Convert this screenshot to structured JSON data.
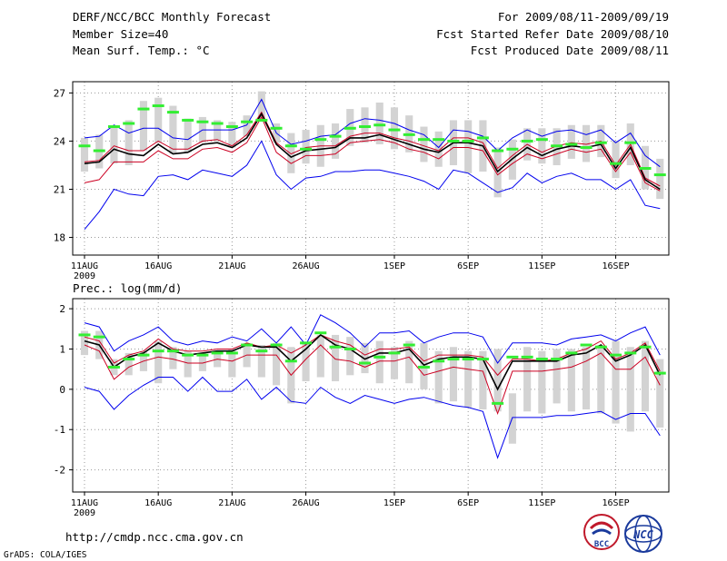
{
  "header": {
    "title": "DERF/NCC/BCC Monthly Forecast",
    "member_size": "Member Size=40",
    "variable": "Mean Surf. Temp.: °C",
    "period": "For 2009/08/11-2009/09/19",
    "refer_date": "Fcst Started Refer Date 2009/08/10",
    "produced_date": "Fcst Produced Date 2009/08/11"
  },
  "colors": {
    "box": "#d3d3d3",
    "clim": "#33ee33",
    "outer": "#0000ee",
    "inner": "#cc0022",
    "mean": "#000000",
    "grid": "#999999"
  },
  "footer": {
    "url": "http://cmdp.ncc.cma.gov.cn",
    "credit": "GrADS: COLA/IGES",
    "logo_bcc": "BCC",
    "logo_ncc": "NCC"
  },
  "chart_data": [
    {
      "type": "line",
      "title": "Mean Surf. Temp.: °C",
      "ylim": [
        16.9,
        27.7
      ],
      "yticks": [
        18,
        21,
        24,
        27
      ],
      "xlim": [
        -0.8,
        39.6
      ],
      "xticks": [
        {
          "day": 0,
          "label": "11AUG",
          "sub": "2009"
        },
        {
          "day": 5,
          "label": "16AUG",
          "sub": ""
        },
        {
          "day": 10,
          "label": "21AUG",
          "sub": ""
        },
        {
          "day": 15,
          "label": "26AUG",
          "sub": ""
        },
        {
          "day": 21,
          "label": "1SEP",
          "sub": ""
        },
        {
          "day": 26,
          "label": "6SEP",
          "sub": ""
        },
        {
          "day": 31,
          "label": "11SEP",
          "sub": ""
        },
        {
          "day": 36,
          "label": "16SEP",
          "sub": ""
        }
      ],
      "grid": true,
      "x": [
        0,
        1,
        2,
        3,
        4,
        5,
        6,
        7,
        8,
        9,
        10,
        11,
        12,
        13,
        14,
        15,
        16,
        17,
        18,
        19,
        20,
        21,
        22,
        23,
        24,
        25,
        26,
        27,
        28,
        29,
        30,
        31,
        32,
        33,
        34,
        35,
        36,
        37,
        38,
        39
      ],
      "box_low": [
        22.1,
        22.3,
        22.6,
        22.5,
        23.4,
        23.9,
        23.2,
        23.3,
        23.9,
        24.0,
        23.6,
        24.3,
        25.4,
        23.9,
        22.0,
        22.6,
        22.4,
        22.9,
        23.7,
        23.9,
        23.8,
        23.5,
        23.3,
        22.7,
        22.4,
        22.5,
        22.0,
        22.1,
        20.5,
        21.6,
        22.8,
        22.6,
        22.5,
        22.9,
        22.7,
        23.0,
        21.7,
        22.5,
        21.0,
        20.4
      ],
      "box_high": [
        24.2,
        24.4,
        24.9,
        25.3,
        26.5,
        26.7,
        26.2,
        25.4,
        25.5,
        25.3,
        25.2,
        25.6,
        27.1,
        25.1,
        24.5,
        24.7,
        25.0,
        25.1,
        26.0,
        26.1,
        26.4,
        26.1,
        25.6,
        24.9,
        24.6,
        25.3,
        25.3,
        25.3,
        23.6,
        24.1,
        24.8,
        24.8,
        24.8,
        25.0,
        25.0,
        25.0,
        24.0,
        25.1,
        23.7,
        22.9
      ],
      "clim": [
        23.7,
        23.4,
        24.9,
        25.1,
        26.0,
        26.2,
        25.8,
        25.3,
        25.2,
        25.1,
        24.9,
        25.2,
        25.3,
        24.8,
        23.7,
        23.5,
        24.1,
        24.3,
        24.8,
        24.9,
        25.0,
        24.7,
        24.4,
        24.1,
        24.1,
        24.0,
        24.0,
        24.2,
        23.4,
        23.5,
        24.0,
        24.1,
        23.7,
        23.8,
        23.6,
        23.9,
        22.6,
        23.9,
        22.3,
        21.9
      ],
      "series": [
        {
          "name": "max",
          "role": "outer",
          "values": [
            24.2,
            24.3,
            25.0,
            24.5,
            24.8,
            24.8,
            24.2,
            24.1,
            24.7,
            24.7,
            24.7,
            25.0,
            26.6,
            24.5,
            23.8,
            24.0,
            24.3,
            24.4,
            25.1,
            25.4,
            25.3,
            25.1,
            24.7,
            24.4,
            23.6,
            24.7,
            24.6,
            24.3,
            23.4,
            24.2,
            24.7,
            24.3,
            24.6,
            24.7,
            24.4,
            24.7,
            23.9,
            24.5,
            23.1,
            22.4
          ]
        },
        {
          "name": "upper",
          "role": "inner",
          "values": [
            22.7,
            22.8,
            23.7,
            23.4,
            23.4,
            24.0,
            23.5,
            23.5,
            24.0,
            24.1,
            23.7,
            24.4,
            25.8,
            23.9,
            23.2,
            23.6,
            23.7,
            23.7,
            24.3,
            24.5,
            24.5,
            24.2,
            24.0,
            23.7,
            23.4,
            24.2,
            24.2,
            23.9,
            22.3,
            23.1,
            23.8,
            23.3,
            23.7,
            23.9,
            23.8,
            24.0,
            22.5,
            23.8,
            21.7,
            21.2
          ]
        },
        {
          "name": "mean",
          "role": "mean",
          "values": [
            22.6,
            22.7,
            23.5,
            23.2,
            23.1,
            23.8,
            23.2,
            23.3,
            23.8,
            23.9,
            23.6,
            24.2,
            25.7,
            23.8,
            23.0,
            23.4,
            23.5,
            23.6,
            24.2,
            24.2,
            24.4,
            24.1,
            23.8,
            23.5,
            23.3,
            23.9,
            23.9,
            23.7,
            22.1,
            22.9,
            23.6,
            23.1,
            23.5,
            23.7,
            23.6,
            23.8,
            22.3,
            23.6,
            21.6,
            21.0
          ]
        },
        {
          "name": "lower",
          "role": "inner",
          "values": [
            21.4,
            21.6,
            22.7,
            22.7,
            22.7,
            23.4,
            22.9,
            22.9,
            23.5,
            23.6,
            23.3,
            23.9,
            25.5,
            23.3,
            22.6,
            23.1,
            23.1,
            23.2,
            23.9,
            24.0,
            24.1,
            23.9,
            23.5,
            23.3,
            22.9,
            23.6,
            23.6,
            23.4,
            21.9,
            22.6,
            23.2,
            22.9,
            23.2,
            23.5,
            23.3,
            23.5,
            22.1,
            23.3,
            21.4,
            20.9
          ]
        },
        {
          "name": "min",
          "role": "outer",
          "values": [
            18.5,
            19.6,
            21.0,
            20.7,
            20.6,
            21.8,
            21.9,
            21.6,
            22.2,
            22.0,
            21.8,
            22.5,
            24.0,
            21.9,
            21.0,
            21.7,
            21.8,
            22.1,
            22.1,
            22.2,
            22.2,
            22.0,
            21.8,
            21.5,
            21.0,
            22.2,
            22.0,
            21.4,
            20.8,
            21.1,
            22.0,
            21.4,
            21.8,
            22.0,
            21.6,
            21.6,
            21.0,
            21.6,
            20.0,
            19.8
          ]
        }
      ]
    },
    {
      "type": "line",
      "title": "Prec.: log(mm/d)",
      "ylim": [
        -2.55,
        2.25
      ],
      "yticks": [
        -2,
        -1,
        0,
        1,
        2
      ],
      "xlim": [
        -0.8,
        39.6
      ],
      "xticks": [
        {
          "day": 0,
          "label": "11AUG",
          "sub": "2009"
        },
        {
          "day": 5,
          "label": "16AUG",
          "sub": ""
        },
        {
          "day": 10,
          "label": "21AUG",
          "sub": ""
        },
        {
          "day": 15,
          "label": "26AUG",
          "sub": ""
        },
        {
          "day": 21,
          "label": "1SEP",
          "sub": ""
        },
        {
          "day": 26,
          "label": "6SEP",
          "sub": ""
        },
        {
          "day": 31,
          "label": "11SEP",
          "sub": ""
        },
        {
          "day": 36,
          "label": "16SEP",
          "sub": ""
        }
      ],
      "grid": true,
      "x": [
        0,
        1,
        2,
        3,
        4,
        5,
        6,
        7,
        8,
        9,
        10,
        11,
        12,
        13,
        14,
        15,
        16,
        17,
        18,
        19,
        20,
        21,
        22,
        23,
        24,
        25,
        26,
        27,
        28,
        29,
        30,
        31,
        32,
        33,
        34,
        35,
        36,
        37,
        38,
        39
      ],
      "box_low": [
        0.85,
        0.75,
        0.35,
        0.35,
        0.45,
        0.15,
        0.5,
        0.3,
        0.45,
        0.55,
        0.3,
        0.55,
        0.3,
        0.1,
        -0.35,
        0.2,
        0.3,
        0.2,
        0.35,
        0.4,
        0.15,
        0.25,
        0.15,
        0.0,
        -0.35,
        -0.3,
        -0.45,
        -0.5,
        -0.55,
        -1.35,
        -0.55,
        -0.6,
        -0.35,
        -0.55,
        -0.5,
        -0.6,
        -0.85,
        -1.05,
        -0.55,
        -0.95
      ],
      "box_high": [
        1.45,
        1.45,
        0.75,
        0.9,
        0.95,
        1.2,
        1.05,
        0.95,
        0.9,
        0.95,
        1.0,
        1.15,
        1.1,
        1.15,
        1.05,
        1.15,
        1.35,
        1.35,
        1.3,
        1.15,
        1.2,
        1.05,
        1.2,
        1.15,
        0.95,
        1.05,
        0.95,
        0.95,
        1.0,
        -0.1,
        1.05,
        0.95,
        1.0,
        1.0,
        1.05,
        1.1,
        1.2,
        1.05,
        1.2,
        0.75
      ],
      "clim": [
        1.35,
        1.3,
        0.55,
        0.75,
        0.85,
        0.95,
        0.95,
        0.85,
        0.85,
        0.9,
        0.9,
        1.1,
        0.95,
        1.1,
        0.7,
        1.15,
        1.4,
        1.05,
        1.0,
        0.65,
        0.8,
        0.9,
        1.1,
        0.55,
        0.7,
        0.75,
        0.75,
        0.75,
        -0.35,
        0.8,
        0.8,
        0.75,
        0.75,
        0.9,
        1.1,
        1.05,
        0.85,
        0.9,
        1.05,
        0.4
      ],
      "series": [
        {
          "name": "max",
          "role": "outer",
          "values": [
            1.65,
            1.55,
            0.95,
            1.2,
            1.35,
            1.55,
            1.2,
            1.1,
            1.2,
            1.15,
            1.3,
            1.2,
            1.5,
            1.15,
            1.55,
            1.1,
            1.85,
            1.65,
            1.4,
            1.05,
            1.4,
            1.4,
            1.45,
            1.15,
            1.3,
            1.4,
            1.4,
            1.3,
            0.65,
            1.15,
            1.15,
            1.15,
            1.1,
            1.25,
            1.3,
            1.35,
            1.2,
            1.4,
            1.55,
            0.85
          ]
        },
        {
          "name": "upper",
          "role": "inner",
          "values": [
            1.3,
            1.2,
            0.65,
            0.85,
            0.95,
            1.25,
            1.0,
            0.95,
            0.95,
            1.0,
            1.0,
            1.15,
            1.05,
            1.1,
            0.9,
            1.1,
            1.35,
            1.2,
            1.1,
            0.85,
            1.0,
            1.0,
            1.05,
            0.7,
            0.85,
            0.85,
            0.85,
            0.8,
            0.35,
            0.75,
            0.75,
            0.7,
            0.75,
            0.9,
            1.0,
            1.2,
            0.75,
            0.9,
            1.15,
            0.45
          ]
        },
        {
          "name": "mean",
          "role": "mean",
          "values": [
            1.2,
            1.1,
            0.55,
            0.8,
            0.9,
            1.15,
            0.95,
            0.85,
            0.9,
            0.95,
            0.95,
            1.1,
            1.05,
            1.05,
            0.7,
            1.0,
            1.35,
            1.1,
            1.0,
            0.75,
            0.9,
            0.9,
            1.0,
            0.6,
            0.75,
            0.8,
            0.8,
            0.75,
            0.0,
            0.7,
            0.7,
            0.7,
            0.7,
            0.85,
            0.9,
            1.1,
            0.7,
            0.85,
            1.1,
            0.35
          ]
        },
        {
          "name": "lower",
          "role": "inner",
          "values": [
            1.1,
            0.95,
            0.25,
            0.55,
            0.7,
            0.8,
            0.75,
            0.65,
            0.65,
            0.75,
            0.7,
            0.85,
            0.85,
            0.85,
            0.35,
            0.75,
            1.1,
            0.75,
            0.7,
            0.55,
            0.7,
            0.7,
            0.8,
            0.35,
            0.45,
            0.55,
            0.5,
            0.45,
            -0.6,
            0.45,
            0.45,
            0.45,
            0.5,
            0.55,
            0.7,
            0.9,
            0.5,
            0.5,
            0.8,
            0.1
          ]
        },
        {
          "name": "min",
          "role": "outer",
          "values": [
            0.05,
            -0.05,
            -0.5,
            -0.15,
            0.1,
            0.3,
            0.3,
            -0.05,
            0.3,
            -0.05,
            -0.05,
            0.25,
            -0.25,
            0.05,
            -0.3,
            -0.35,
            0.05,
            -0.2,
            -0.35,
            -0.15,
            -0.25,
            -0.35,
            -0.25,
            -0.2,
            -0.3,
            -0.4,
            -0.45,
            -0.55,
            -1.7,
            -0.7,
            -0.7,
            -0.7,
            -0.65,
            -0.65,
            -0.6,
            -0.55,
            -0.75,
            -0.6,
            -0.6,
            -1.15
          ]
        }
      ]
    }
  ]
}
